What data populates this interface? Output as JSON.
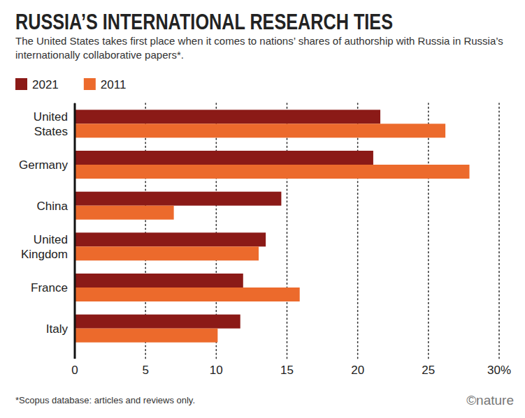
{
  "chart_data": {
    "type": "bar",
    "orientation": "horizontal",
    "title": "RUSSIA’S INTERNATIONAL RESEARCH TIES",
    "subtitle": "The United States takes first place when it comes to nations’ shares of authorship with Russia in Russia’s internationally collaborative papers*.",
    "footnote": "*Scopus database: articles and reviews only.",
    "source": "©nature",
    "categories": [
      "United States",
      "Germany",
      "China",
      "United Kingdom",
      "France",
      "Italy"
    ],
    "series": [
      {
        "name": "2021",
        "color": "#8b1a17",
        "values": [
          21.6,
          21.1,
          14.6,
          13.5,
          11.9,
          11.7
        ]
      },
      {
        "name": "2011",
        "color": "#ec6a2c",
        "values": [
          26.2,
          27.9,
          7.0,
          13.0,
          15.9,
          10.1
        ]
      }
    ],
    "xlim": [
      0,
      30
    ],
    "xticks": [
      0,
      5,
      10,
      15,
      20,
      25,
      {
        "value": 30,
        "label": "30%"
      }
    ],
    "grid": true,
    "legend": "top-left"
  }
}
